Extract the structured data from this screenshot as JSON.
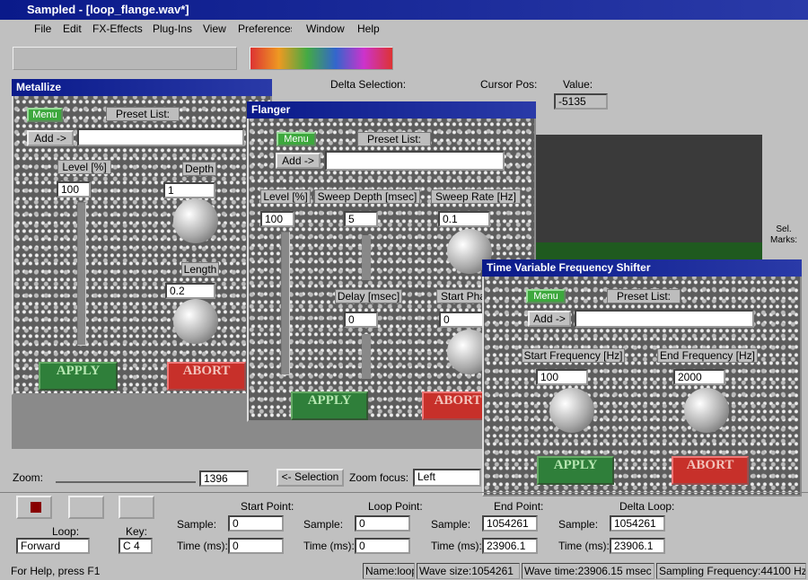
{
  "window": {
    "title": "Sampled - [loop_flange.wav*]"
  },
  "menu": [
    "File",
    "Edit",
    "FX-Effects",
    "Plug-Ins",
    "View",
    "Preferences",
    "Window",
    "Help"
  ],
  "info": {
    "delta_selection": "Delta Selection:",
    "cursor_pos": "Cursor Pos:",
    "value_label": "Value:",
    "value": "-5135"
  },
  "metallize": {
    "title": "Metallize",
    "menu": "Menu",
    "preset_list": "Preset List:",
    "add": "Add ->",
    "level": "Level [%]",
    "level_value": "100",
    "depth": "Depth",
    "depth_value": "1",
    "length": "Length",
    "length_value": "0.2",
    "apply": "APPLY",
    "abort": "ABORT"
  },
  "flanger": {
    "title": "Flanger",
    "menu": "Menu",
    "preset_list": "Preset List:",
    "add": "Add ->",
    "level": "Level [%]",
    "sweep_depth": "Sweep Depth [msec]",
    "sweep_rate": "Sweep Rate [Hz]",
    "level_value": "100",
    "sweep_depth_value": "5",
    "sweep_rate_value": "0.1",
    "delay": "Delay [msec]",
    "start_phase": "Start Pha",
    "delay_value": "0",
    "start_phase_value": "0",
    "apply": "APPLY",
    "abort": "ABORT"
  },
  "shifter": {
    "title": "Time Variable Frequency Shifter",
    "menu": "Menu",
    "preset_list": "Preset List:",
    "add": "Add ->",
    "start_frequency": "Start Frequency [Hz]",
    "end_frequency": "End Frequency [Hz]",
    "start_value": "100",
    "end_value": "2000",
    "apply": "APPLY",
    "abort": "ABORT"
  },
  "sel_marks": "Sel. Marks:",
  "zoom": {
    "label": "Zoom:",
    "value": "1396",
    "selection": "<- Selection",
    "focus": "Zoom focus:",
    "focus_value": "Left"
  },
  "loop": {
    "loop_label": "Loop:",
    "key_label": "Key:",
    "mode": "Forward",
    "key": "C 4"
  },
  "points": [
    {
      "title": "Start Point:",
      "sample_label": "Sample:",
      "sample": "0",
      "time_label": "Time (ms):",
      "time": "0"
    },
    {
      "title": "Loop Point:",
      "sample_label": "Sample:",
      "sample": "0",
      "time_label": "Time (ms):",
      "time": "0"
    },
    {
      "title": "End Point:",
      "sample_label": "Sample:",
      "sample": "1054261",
      "time_label": "Time (ms):",
      "time": "23906.1"
    },
    {
      "title": "Delta Loop:",
      "sample_label": "Sample:",
      "sample": "1054261",
      "time_label": "Time (ms):",
      "time": "23906.1"
    }
  ],
  "status": {
    "help": "For Help, press F1",
    "name": "Name:loop",
    "wave_size": "Wave size:1054261",
    "wave_time": "Wave time:23906.15 msec",
    "sampling_frequency": "Sampling Frequency:44100 Hz"
  }
}
